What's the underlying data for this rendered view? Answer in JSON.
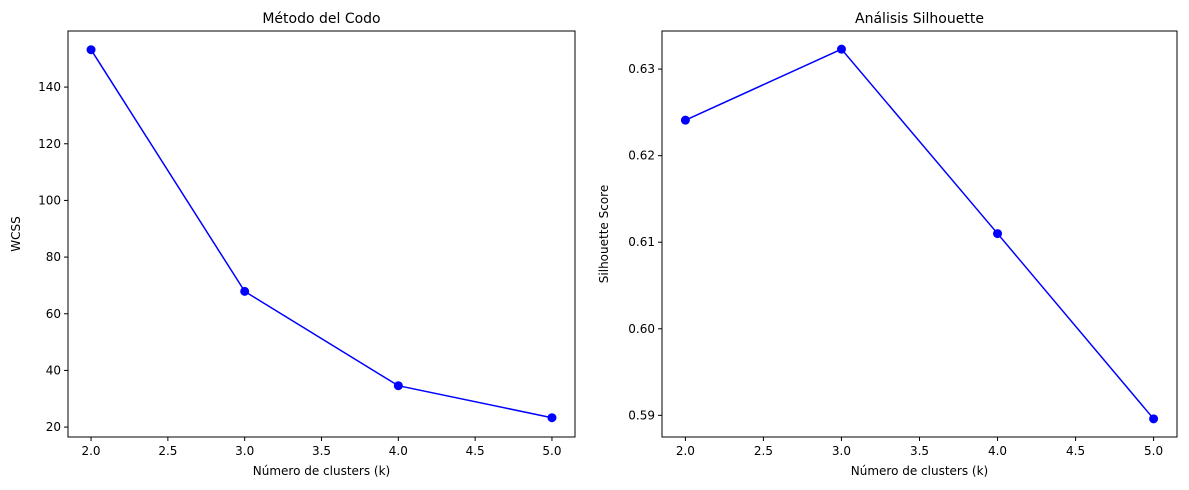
{
  "chart_data": [
    {
      "type": "line",
      "title": "Método del Codo",
      "xlabel": "Número de clusters (k)",
      "ylabel": "WCSS",
      "x": [
        2,
        3,
        4,
        5
      ],
      "series": [
        {
          "values": [
            153.2,
            67.9,
            34.6,
            23.3
          ]
        }
      ],
      "xlim": [
        1.85,
        5.15
      ],
      "ylim": [
        16.5,
        159.8
      ],
      "xticks": [
        2.0,
        2.5,
        3.0,
        3.5,
        4.0,
        4.5,
        5.0
      ],
      "xtick_labels": [
        "2.0",
        "2.5",
        "3.0",
        "3.5",
        "4.0",
        "4.5",
        "5.0"
      ],
      "yticks": [
        20,
        40,
        60,
        80,
        100,
        120,
        140
      ],
      "ytick_labels": [
        "20",
        "40",
        "60",
        "80",
        "100",
        "120",
        "140"
      ],
      "color": "#0000ff",
      "marker": "circle",
      "grid": false,
      "legend": false
    },
    {
      "type": "line",
      "title": "Análisis Silhouette",
      "xlabel": "Número de clusters (k)",
      "ylabel": "Silhouette Score",
      "x": [
        2,
        3,
        4,
        5
      ],
      "series": [
        {
          "values": [
            0.6241,
            0.6323,
            0.611,
            0.5896
          ]
        }
      ],
      "xlim": [
        1.85,
        5.15
      ],
      "ylim": [
        0.5875,
        0.6344
      ],
      "xticks": [
        2.0,
        2.5,
        3.0,
        3.5,
        4.0,
        4.5,
        5.0
      ],
      "xtick_labels": [
        "2.0",
        "2.5",
        "3.0",
        "3.5",
        "4.0",
        "4.5",
        "5.0"
      ],
      "yticks": [
        0.59,
        0.6,
        0.61,
        0.62,
        0.63
      ],
      "ytick_labels": [
        "0.59",
        "0.60",
        "0.61",
        "0.62",
        "0.63"
      ],
      "color": "#0000ff",
      "marker": "circle",
      "grid": false,
      "legend": false
    }
  ]
}
